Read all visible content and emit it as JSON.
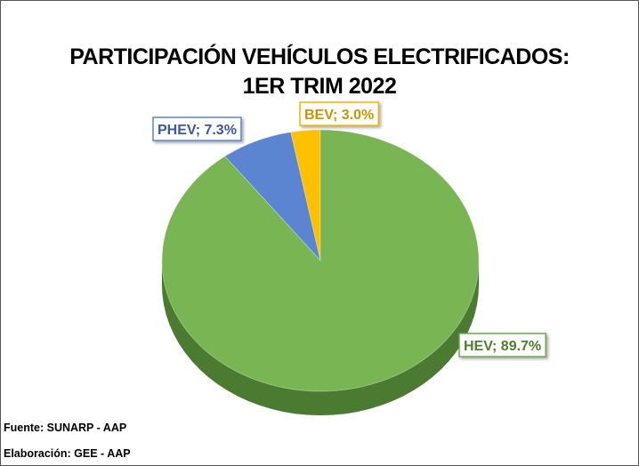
{
  "chart_data": {
    "type": "pie",
    "title_lines": [
      "PARTICIPACIÓN VEHÍCULOS ELECTRIFICADOS:",
      "1ER TRIM 2022"
    ],
    "slices": [
      {
        "name": "HEV",
        "value": 89.7,
        "label": "HEV; 89.7%",
        "color": "#79b553",
        "side": "#4b7a31",
        "text_color": "#4e7f2f",
        "border": "#6aa84f"
      },
      {
        "name": "PHEV",
        "value": 7.3,
        "label": "PHEV; 7.3%",
        "color": "#5b85d0",
        "side": "#34569a",
        "text_color": "#3b5a9a",
        "border": "#5b85d0"
      },
      {
        "name": "BEV",
        "value": 3.0,
        "label": "BEV; 3.0%",
        "color": "#ffc000",
        "side": "#c08a00",
        "text_color": "#c99500",
        "border": "#f4b400"
      }
    ],
    "legend": "none"
  },
  "footer": {
    "source": "Fuente: SUNARP - AAP",
    "author": "Elaboración: GEE - AAP"
  }
}
